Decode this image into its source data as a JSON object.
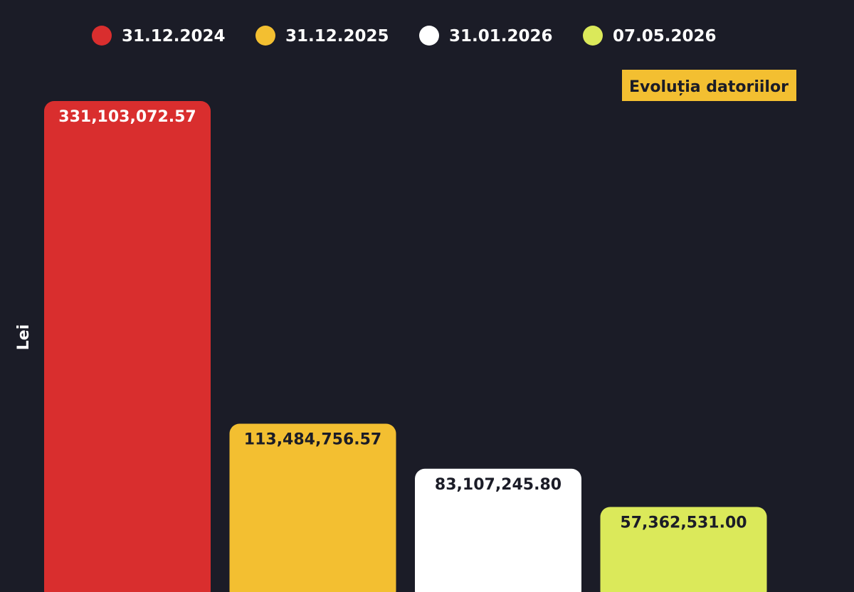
{
  "chart_data": {
    "type": "bar",
    "title": "Evoluția datoriilor",
    "xlabel": "",
    "ylabel": "Lei",
    "categories": [
      "31.12.2024",
      "31.12.2025",
      "31.01.2026",
      "07.05.2026"
    ],
    "values": [
      331103072.57,
      113484756.57,
      83107245.8,
      57362531.0
    ],
    "value_labels": [
      "331,103,072.57",
      "113,484,756.57",
      "83,107,245.80",
      "57,362,531.00"
    ],
    "colors": [
      "#d92e2e",
      "#f3bf31",
      "#ffffff",
      "#dbe95a"
    ],
    "label_colors": [
      "#ffffff",
      "#1b1c27",
      "#1b1c27",
      "#1b1c27"
    ],
    "background": "#1b1c27",
    "title_badge_color": "#f3bf31",
    "legend": "top",
    "grid": false
  }
}
